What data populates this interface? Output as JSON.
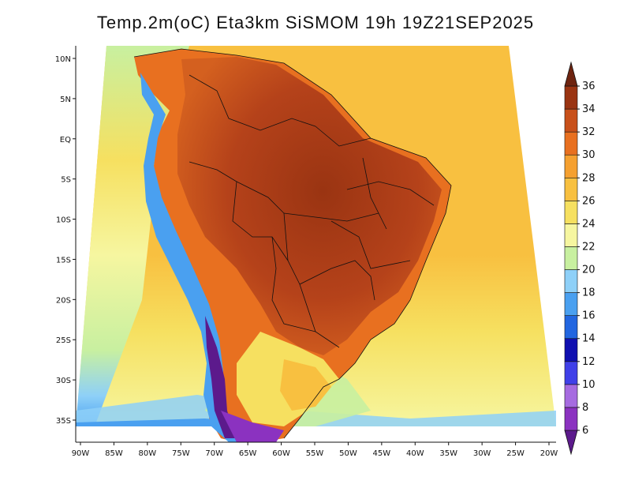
{
  "title": "Temp.2m(oC) Eta3km SiSMOM 19h 19Z21SEP2025",
  "map": {
    "lon_range": [
      -91,
      -20
    ],
    "lat_range": [
      -38,
      12
    ],
    "lat_ticks": [
      "10N",
      "5N",
      "EQ",
      "5S",
      "10S",
      "15S",
      "20S",
      "25S",
      "30S",
      "35S"
    ],
    "lat_values": [
      10,
      5,
      0,
      -5,
      -10,
      -15,
      -20,
      -25,
      -30,
      -35
    ],
    "lon_ticks": [
      "90W",
      "85W",
      "80W",
      "75W",
      "70W",
      "65W",
      "60W",
      "55W",
      "50W",
      "45W",
      "40W",
      "35W",
      "30W",
      "25W",
      "20W"
    ],
    "lon_values": [
      -90,
      -85,
      -80,
      -75,
      -70,
      -65,
      -60,
      -55,
      -50,
      -45,
      -40,
      -35,
      -30,
      -25,
      -20
    ]
  },
  "colorbar": {
    "labels": [
      "6",
      "8",
      "10",
      "12",
      "14",
      "16",
      "18",
      "20",
      "22",
      "24",
      "26",
      "28",
      "30",
      "32",
      "34",
      "36"
    ],
    "colors": [
      "#5c1a8c",
      "#8b32c0",
      "#a66be0",
      "#4040e8",
      "#1010b0",
      "#2266e0",
      "#4aa0f0",
      "#8ed0f8",
      "#c8f0a0",
      "#f6f6a0",
      "#f6e060",
      "#f8c040",
      "#f5a030",
      "#e87020",
      "#c8501a",
      "#9a3412",
      "#6e2410"
    ]
  }
}
